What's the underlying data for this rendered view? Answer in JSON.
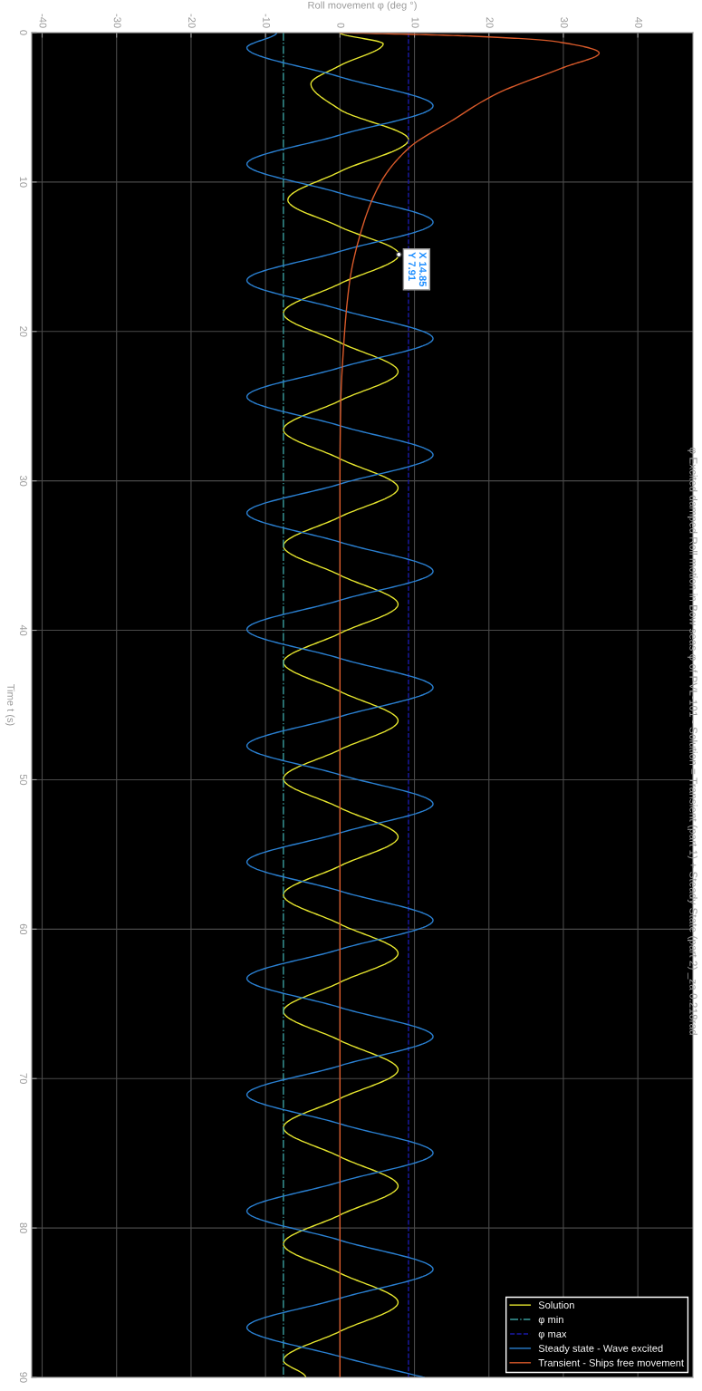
{
  "chart_data": {
    "type": "line",
    "title": "φ Excited damped Roll motion in Bow seas φ of PVL-101 - Solution = Transient (part 1) + Steady State (part 2) _za 0.218rad",
    "xlabel": "Roll movement φ (deg °)",
    "ylabel": "Time t (s)",
    "xlim": [
      -41.4,
      47.4
    ],
    "xticks": [
      -40,
      -30,
      -20,
      -10,
      0,
      10,
      20,
      30,
      40
    ],
    "ylim": [
      90,
      0
    ],
    "yticks": [
      0,
      10,
      20,
      30,
      40,
      50,
      60,
      70,
      80,
      90
    ],
    "grid": true,
    "legend": "bottom right",
    "series": [
      {
        "name": "Solution",
        "color": "#e6e62e",
        "line_style": "solid",
        "values": [
          0,
          0.75,
          2.2,
          3.43,
          5.15,
          7.16,
          9.3,
          11.2,
          13.0,
          14.85,
          16.8,
          18.78,
          20.74,
          22.69,
          24.63,
          26.57,
          28.52,
          30.48,
          32.41,
          34.35,
          36.31,
          38.26,
          40.2,
          42.14,
          44.09,
          46.05,
          47.99,
          49.93,
          51.88,
          53.83,
          55.77,
          57.71,
          59.66,
          61.62,
          63.56,
          65.5,
          67.45,
          69.41,
          71.34,
          73.28,
          75.23,
          77.19,
          79.13,
          81.07,
          83.02,
          84.98,
          86.92,
          88.86,
          90
        ],
        "x": [
          0,
          5.8,
          0,
          -3.9,
          0,
          9.2,
          0,
          -7.0,
          0,
          7.91,
          0,
          -7.6,
          0,
          7.8,
          0,
          -7.6,
          0,
          7.8,
          0,
          -7.6,
          0,
          7.8,
          0,
          -7.6,
          0,
          7.8,
          0,
          -7.6,
          0,
          7.8,
          0,
          -7.6,
          0,
          7.8,
          0,
          -7.6,
          0,
          7.8,
          0,
          -7.6,
          0,
          7.8,
          0,
          -7.6,
          0,
          7.8,
          0,
          -7.6,
          -4.6
        ]
      },
      {
        "name": "φ min",
        "color": "#3a9c9c",
        "line_style": "dashdot",
        "values": [
          0,
          90
        ],
        "x": [
          -7.6,
          -7.6
        ]
      },
      {
        "name": "φ max",
        "color": "#1a1aa8",
        "line_style": "dashed",
        "values": [
          0,
          90
        ],
        "x": [
          9.2,
          9.2
        ]
      },
      {
        "name": "Steady state - Wave excited",
        "color": "#2a80d2",
        "line_style": "solid",
        "values": [
          0,
          1.01,
          2.96,
          4.9,
          6.85,
          8.8,
          10.74,
          12.69,
          14.64,
          16.58,
          18.53,
          20.48,
          22.42,
          24.37,
          26.31,
          28.26,
          30.21,
          32.15,
          34.1,
          36.05,
          37.99,
          39.94,
          41.88,
          43.83,
          45.78,
          47.73,
          49.67,
          51.62,
          53.56,
          55.51,
          57.45,
          59.41,
          61.35,
          63.3,
          65.24,
          67.19,
          69.14,
          71.08,
          73.03,
          74.98,
          76.92,
          78.87,
          80.82,
          82.76,
          84.71,
          86.66,
          88.6,
          90
        ],
        "x": [
          -8.5,
          -12.5,
          0,
          12.5,
          0,
          -12.5,
          0,
          12.5,
          0,
          -12.5,
          0,
          12.5,
          0,
          -12.5,
          0,
          12.5,
          0,
          -12.5,
          0,
          12.5,
          0,
          -12.5,
          0,
          12.5,
          0,
          -12.5,
          0,
          12.5,
          0,
          -12.5,
          0,
          12.5,
          0,
          -12.5,
          0,
          12.5,
          0,
          -12.5,
          0,
          12.5,
          0,
          -12.5,
          0,
          12.5,
          0,
          -12.5,
          0,
          11.3
        ]
      },
      {
        "name": "Transient - Ships free movement",
        "color": "#d95a2a",
        "line_style": "solid",
        "values": [
          0,
          0.24,
          0.6,
          1.37,
          2.32,
          4.1,
          5.9,
          7.7,
          10,
          12.87,
          16.66,
          20.9,
          24.9,
          30,
          90
        ],
        "x": [
          0,
          18,
          29,
          34.8,
          30.1,
          21,
          15,
          9.3,
          5.5,
          3.1,
          1.3,
          0.5,
          0.1,
          0,
          0
        ]
      }
    ],
    "annotations": [
      {
        "text": "X 14.85\nY 7.91",
        "x": 7.91,
        "y": 14.85
      }
    ]
  }
}
